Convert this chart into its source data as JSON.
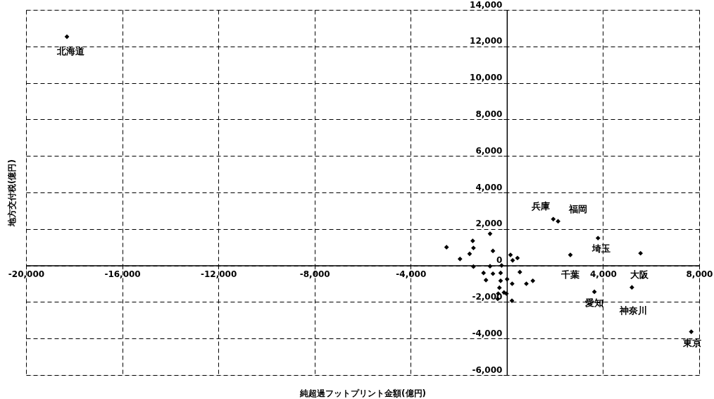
{
  "chart_data": {
    "type": "scatter",
    "xlabel": "純超過フットプリント金額(億円)",
    "ylabel": "地方交付税(億円)",
    "marker": "diamond",
    "grid": true,
    "xlim": [
      -20000,
      8000
    ],
    "ylim": [
      -6000,
      14000
    ],
    "xticks": [
      {
        "value": -20000,
        "label": "-20,000"
      },
      {
        "value": -16000,
        "label": "-16,000"
      },
      {
        "value": -12000,
        "label": "-12,000"
      },
      {
        "value": -8000,
        "label": "-8,000"
      },
      {
        "value": -4000,
        "label": "-4,000"
      },
      {
        "value": 0,
        "label": null
      },
      {
        "value": 4000,
        "label": "4,000"
      },
      {
        "value": 8000,
        "label": "8,000"
      }
    ],
    "yticks": [
      {
        "value": -6000,
        "label": "-6,000"
      },
      {
        "value": -4000,
        "label": "-4,000"
      },
      {
        "value": -2000,
        "label": "-2,000"
      },
      {
        "value": 0,
        "label": "0"
      },
      {
        "value": 2000,
        "label": "2,000"
      },
      {
        "value": 4000,
        "label": "4,000"
      },
      {
        "value": 6000,
        "label": "6,000"
      },
      {
        "value": 8000,
        "label": "8,000"
      },
      {
        "value": 10000,
        "label": "10,000"
      },
      {
        "value": 12000,
        "label": "12,000"
      },
      {
        "value": 14000,
        "label": "14,000"
      }
    ],
    "series": [
      {
        "color": "#000000",
        "x": [
          -18300,
          1930,
          2130,
          3790,
          2640,
          5560,
          5200,
          3640,
          7670,
          -2510,
          -1950,
          -1550,
          -1420,
          -1390,
          -1390,
          -700,
          -580,
          -700,
          -220,
          -970,
          -870,
          -580,
          -260,
          150,
          240,
          440,
          540,
          -260,
          10,
          220,
          810,
          1080,
          -310,
          -360,
          -380,
          -120,
          210,
          -20
        ],
        "values": [
          12530,
          2540,
          2420,
          1500,
          580,
          670,
          -1200,
          -1440,
          -3630,
          1000,
          360,
          640,
          1350,
          960,
          -60,
          1740,
          800,
          -40,
          0,
          -410,
          -800,
          -450,
          -410,
          580,
          280,
          410,
          -360,
          -840,
          -750,
          -1000,
          -1000,
          -840,
          -1220,
          -1540,
          -1830,
          -1480,
          -1930,
          -1540
        ]
      }
    ],
    "annotations": [
      {
        "text": "北海道",
        "x": -18300,
        "y": 12530
      },
      {
        "text": "兵庫",
        "x": 1930,
        "y": 2540
      },
      {
        "text": "福岡",
        "x": 2130,
        "y": 2420
      },
      {
        "text": "埼玉",
        "x": 3790,
        "y": 1500
      },
      {
        "text": "千葉",
        "x": 2640,
        "y": 580
      },
      {
        "text": "大阪",
        "x": 5560,
        "y": 670
      },
      {
        "text": "神奈川",
        "x": 5200,
        "y": -1200
      },
      {
        "text": "愛知",
        "x": 3640,
        "y": -1440
      },
      {
        "text": "東京",
        "x": 7670,
        "y": -3630
      }
    ]
  }
}
